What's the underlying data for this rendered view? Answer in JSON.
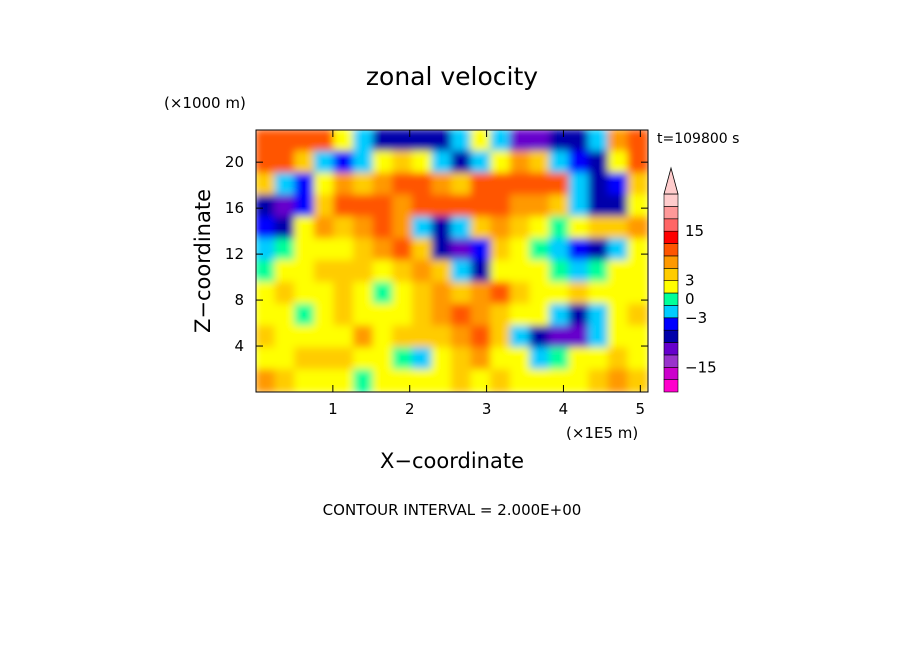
{
  "chart_data": {
    "type": "heatmap",
    "title": "zonal velocity",
    "time_label": "t=109800 s",
    "xlabel": "X−coordinate",
    "ylabel": "Z−coordinate",
    "x_unit": "(×1E5 m)",
    "y_unit": "(×1000 m)",
    "xlim": [
      0,
      5.1
    ],
    "ylim": [
      0,
      22.8
    ],
    "x_ticks": [
      "1",
      "2",
      "3",
      "4",
      "5"
    ],
    "x_tick_values": [
      1,
      2,
      3,
      4,
      5
    ],
    "y_ticks": [
      "4",
      "8",
      "12",
      "16",
      "20"
    ],
    "y_tick_values": [
      4,
      8,
      12,
      16,
      20
    ],
    "contour_interval": "CONTOUR INTERVAL = 2.000E+00",
    "colorbar": {
      "labels": [
        "15",
        "3",
        "0",
        "−3",
        "−15"
      ],
      "label_values": [
        15,
        3,
        0,
        -3,
        -15
      ],
      "levels": [
        -21,
        -19,
        -15,
        -11,
        -7,
        -5,
        -3,
        -1,
        1,
        3,
        5,
        7,
        11,
        15,
        19,
        21
      ],
      "colors": [
        "#ff00cc",
        "#cc00cc",
        "#9933cc",
        "#6600cc",
        "#0000aa",
        "#0000ff",
        "#00ccff",
        "#00ff99",
        "#ffff00",
        "#ffcc00",
        "#ff9900",
        "#ff5500",
        "#ff0000",
        "#ff6666",
        "#ff9999",
        "#ffcccc"
      ],
      "extend_top": true
    },
    "grid": false,
    "note": "2-D contour field of zonal velocity (m/s) vs X (×1E5 m) and Z (×1000 m)",
    "field_rows_top_to_bottom": [
      [
        9,
        9,
        7,
        9,
        2,
        -3,
        -7,
        -7,
        -7,
        -7,
        -3,
        2,
        -3,
        -9,
        -11,
        -7,
        -7,
        -3,
        6,
        9
      ],
      [
        9,
        7,
        3,
        -3,
        -5,
        -3,
        2,
        3,
        2,
        -3,
        -7,
        -3,
        2,
        6,
        4,
        -3,
        -5,
        -7,
        2,
        7
      ],
      [
        3,
        -3,
        -5,
        2,
        5,
        3,
        5,
        7,
        9,
        5,
        3,
        7,
        9,
        8,
        9,
        7,
        -3,
        -7,
        -5,
        3
      ],
      [
        -7,
        -9,
        -5,
        3,
        7,
        9,
        7,
        6,
        7,
        8,
        9,
        9,
        7,
        6,
        5,
        3,
        -3,
        -7,
        -7,
        2
      ],
      [
        -5,
        -7,
        2,
        5,
        3,
        5,
        9,
        5,
        -3,
        -7,
        -3,
        3,
        6,
        3,
        1,
        -1,
        2,
        3,
        3,
        5
      ],
      [
        -3,
        -1,
        1,
        2,
        1,
        3,
        5,
        7,
        3,
        -7,
        -9,
        -5,
        4,
        1,
        -1,
        -3,
        -5,
        -7,
        -3,
        1
      ],
      [
        -1,
        1,
        2,
        3,
        4,
        3,
        2,
        4,
        5,
        4,
        -3,
        -7,
        2,
        1,
        1,
        -1,
        -3,
        -1,
        1,
        2
      ],
      [
        1,
        3,
        2,
        1,
        3,
        1,
        -1,
        2,
        4,
        6,
        3,
        5,
        7,
        3,
        1,
        2,
        3,
        1,
        2,
        1
      ],
      [
        2,
        1,
        -1,
        2,
        3,
        2,
        1,
        1,
        3,
        5,
        7,
        6,
        4,
        2,
        1,
        -3,
        -7,
        -3,
        1,
        3
      ],
      [
        3,
        1,
        1,
        2,
        1,
        5,
        2,
        3,
        3,
        4,
        5,
        7,
        3,
        -3,
        -7,
        -11,
        -9,
        -3,
        2,
        1
      ],
      [
        2,
        1,
        3,
        4,
        3,
        2,
        1,
        -1,
        -3,
        2,
        3,
        5,
        2,
        1,
        -3,
        -1,
        2,
        1,
        3,
        2
      ],
      [
        5,
        3,
        2,
        1,
        1,
        -1,
        1,
        2,
        1,
        1,
        3,
        2,
        3,
        2,
        1,
        1,
        1,
        3,
        5,
        3
      ]
    ]
  }
}
